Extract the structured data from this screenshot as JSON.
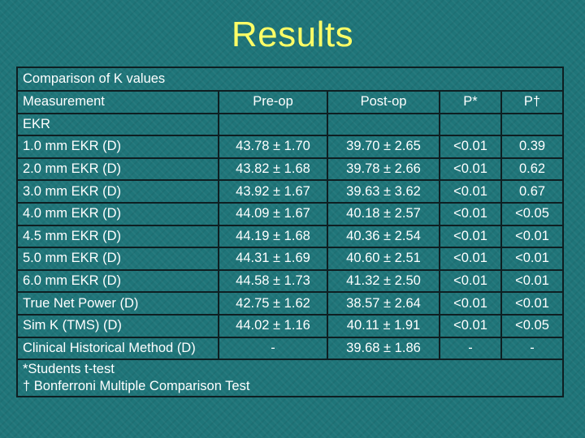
{
  "title": "Results",
  "table": {
    "caption": "Comparison of K values",
    "headers": [
      "Measurement",
      "Pre-op",
      "Post-op",
      "P*",
      "P†"
    ],
    "section_label": "EKR",
    "rows": [
      [
        "1.0 mm EKR (D)",
        "43.78 ± 1.70",
        "39.70 ± 2.65",
        "<0.01",
        "0.39"
      ],
      [
        "2.0 mm EKR (D)",
        "43.82 ± 1.68",
        "39.78 ± 2.66",
        "<0.01",
        "0.62"
      ],
      [
        "3.0 mm EKR (D)",
        "43.92 ± 1.67",
        "39.63 ± 3.62",
        "<0.01",
        "0.67"
      ],
      [
        "4.0 mm EKR (D)",
        "44.09 ± 1.67",
        "40.18 ± 2.57",
        "<0.01",
        "<0.05"
      ],
      [
        "4.5 mm EKR (D)",
        "44.19 ± 1.68",
        "40.36 ± 2.54",
        "<0.01",
        "<0.01"
      ],
      [
        "5.0 mm EKR (D)",
        "44.31 ± 1.69",
        "40.60 ± 2.51",
        "<0.01",
        "<0.01"
      ],
      [
        "6.0 mm EKR (D)",
        "44.58 ± 1.73",
        "41.32 ± 2.50",
        "<0.01",
        "<0.01"
      ],
      [
        "True Net Power (D)",
        "42.75 ± 1.62",
        "38.57 ± 2.64",
        "<0.01",
        "<0.01"
      ],
      [
        "Sim K (TMS) (D)",
        "44.02 ± 1.16",
        "40.11 ± 1.91",
        "<0.01",
        "<0.05"
      ],
      [
        "Clinical Historical Method (D)",
        "-",
        "39.68 ± 1.86",
        "-",
        "-"
      ]
    ],
    "footnotes": [
      "*Students t-test",
      "† Bonferroni Multiple Comparison Test"
    ]
  }
}
